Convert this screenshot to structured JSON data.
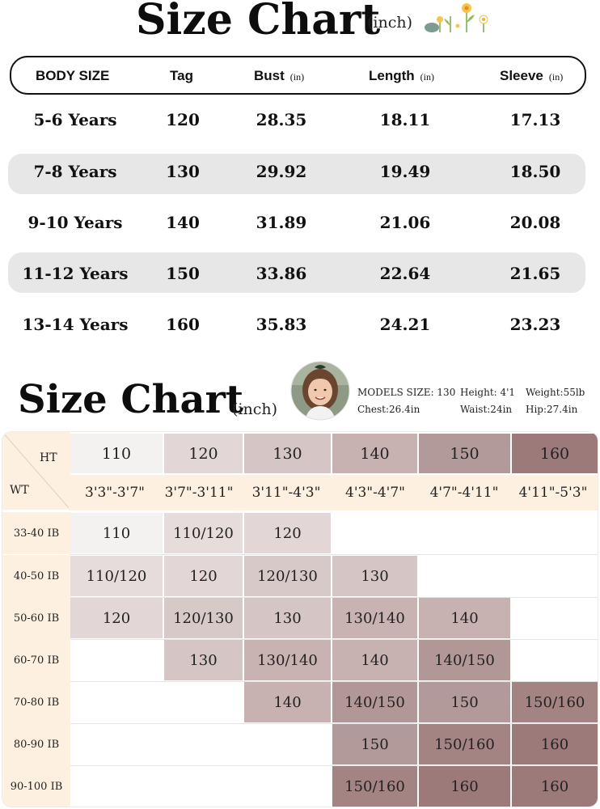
{
  "size_chart": {
    "title": "Size Chart",
    "unit": "(inch)",
    "headers": {
      "body_size": "BODY SIZE",
      "tag": "Tag",
      "bust": "Bust",
      "length": "Length",
      "sleeve": "Sleeve",
      "unit_small": "(in)"
    },
    "rows": [
      {
        "body": "5-6 Years",
        "tag": "120",
        "bust": "28.35",
        "length": "18.11",
        "sleeve": "17.13"
      },
      {
        "body": "7-8 Years",
        "tag": "130",
        "bust": "29.92",
        "length": "19.49",
        "sleeve": "18.50"
      },
      {
        "body": "9-10 Years",
        "tag": "140",
        "bust": "31.89",
        "length": "21.06",
        "sleeve": "20.08"
      },
      {
        "body": "11-12 Years",
        "tag": "150",
        "bust": "33.86",
        "length": "22.64",
        "sleeve": "21.65"
      },
      {
        "body": "13-14 Years",
        "tag": "160",
        "bust": "35.83",
        "length": "24.21",
        "sleeve": "23.23"
      }
    ]
  },
  "model_chart": {
    "title": "Size Chart",
    "unit": "(inch)",
    "model": {
      "size": "MODELS  SIZE: 130",
      "height": "Height: 4'1",
      "weight": "Weight:55lb",
      "chest": "Chest:26.4in",
      "waist": "Waist:24in",
      "hip": "Hip:27.4in"
    },
    "ht_label": "HT",
    "wt_label": "WT",
    "ht_sizes": [
      "110",
      "120",
      "130",
      "140",
      "150",
      "160"
    ],
    "heights": [
      "3'3\"-3'7\"",
      "3'7\"-3'11\"",
      "3'11\"-4'3\"",
      "4'3\"-4'7\"",
      "4'7\"-4'11\"",
      "4'11\"-5'3\""
    ],
    "weights": [
      "33-40 IB",
      "40-50 IB",
      "50-60 IB",
      "60-70 IB",
      "70-80 IB",
      "80-90 IB",
      "90-100 IB"
    ],
    "grid": [
      [
        "110",
        "110/120",
        "120",
        "",
        "",
        ""
      ],
      [
        "110/120",
        "120",
        "120/130",
        "130",
        "",
        ""
      ],
      [
        "120",
        "120/130",
        "130",
        "130/140",
        "140",
        ""
      ],
      [
        "",
        "130",
        "130/140",
        "140",
        "140/150",
        ""
      ],
      [
        "",
        "",
        "140",
        "140/150",
        "150",
        "150/160"
      ],
      [
        "",
        "",
        "",
        "150",
        "150/160",
        "160"
      ],
      [
        "",
        "",
        "",
        "150/160",
        "160",
        "160"
      ]
    ],
    "colors": {
      "110": "#f4f1f1",
      "110/120": "#e6dcdc",
      "120": "#e2d6d6",
      "120/130": "#d8c9c9",
      "130": "#d6c5c5",
      "130/140": "#c9b2b2",
      "140": "#c8b1b1",
      "140/150": "#b29797",
      "150": "#b39a9a",
      "150/160": "#a48383",
      "160": "#9c7a7a",
      "header_bg": "#fdf0e0"
    }
  }
}
